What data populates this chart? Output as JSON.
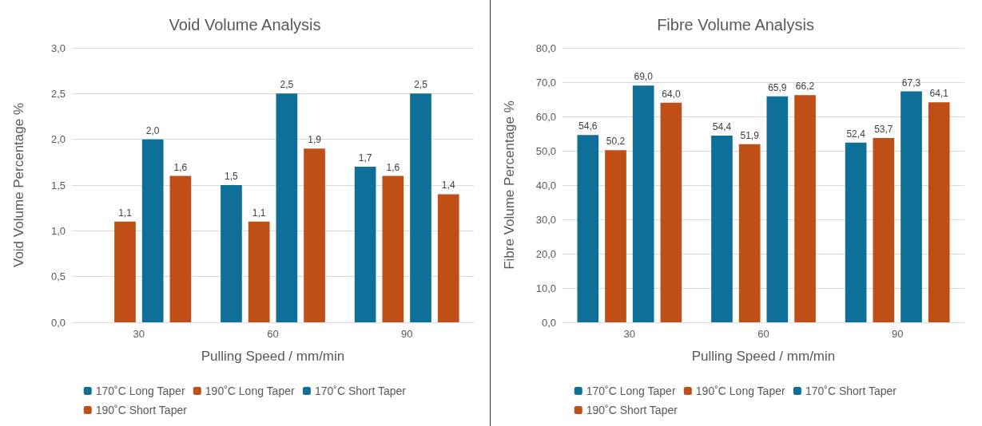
{
  "chart_data": [
    {
      "type": "bar",
      "title": "Void Volume Analysis",
      "xlabel": "Pulling Speed / mm/min",
      "ylabel": "Void Volume Percentage %",
      "categories": [
        "30",
        "60",
        "90"
      ],
      "series": [
        {
          "name": "170˚C Long Taper",
          "color": "#0e6f99",
          "values": [
            null,
            1.5,
            1.7
          ],
          "value_labels": [
            null,
            "1,5",
            "1,7"
          ]
        },
        {
          "name": "190˚C Long Taper",
          "color": "#bf4f17",
          "values": [
            1.1,
            1.1,
            1.6
          ],
          "value_labels": [
            "1,1",
            "1,1",
            "1,6"
          ]
        },
        {
          "name": "170˚C Short Taper",
          "color": "#0e6f99",
          "values": [
            2.0,
            2.5,
            2.5
          ],
          "value_labels": [
            "2,0",
            "2,5",
            "2,5"
          ]
        },
        {
          "name": "190˚C Short Taper",
          "color": "#bf4f17",
          "values": [
            1.6,
            1.9,
            1.4
          ],
          "value_labels": [
            "1,6",
            "1,9",
            "1,4"
          ]
        }
      ],
      "ylim": [
        0,
        3
      ],
      "yticks": [
        {
          "value": 0,
          "label": "0,0"
        },
        {
          "value": 0.5,
          "label": "0,5"
        },
        {
          "value": 1,
          "label": "1,0"
        },
        {
          "value": 1.5,
          "label": "1,5"
        },
        {
          "value": 2,
          "label": "2,0"
        },
        {
          "value": 2.5,
          "label": "2,5"
        },
        {
          "value": 3,
          "label": "3,0"
        }
      ],
      "grid": "y",
      "legend": "bottom"
    },
    {
      "type": "bar",
      "title": "Fibre Volume Analysis",
      "xlabel": "Pulling Speed / mm/min",
      "ylabel": "Fibre Volume Percentage %",
      "categories": [
        "30",
        "60",
        "90"
      ],
      "series": [
        {
          "name": "170˚C Long Taper",
          "color": "#0e6f99",
          "values": [
            54.6,
            54.4,
            52.4
          ],
          "value_labels": [
            "54,6",
            "54,4",
            "52,4"
          ]
        },
        {
          "name": "190˚C Long Taper",
          "color": "#bf4f17",
          "values": [
            50.2,
            51.9,
            53.7
          ],
          "value_labels": [
            "50,2",
            "51,9",
            "53,7"
          ]
        },
        {
          "name": "170˚C Short Taper",
          "color": "#0e6f99",
          "values": [
            69.0,
            65.9,
            67.3
          ],
          "value_labels": [
            "69,0",
            "65,9",
            "67,3"
          ]
        },
        {
          "name": "190˚C Short Taper",
          "color": "#bf4f17",
          "values": [
            64.0,
            66.2,
            64.1
          ],
          "value_labels": [
            "64,0",
            "66,2",
            "64,1"
          ]
        }
      ],
      "ylim": [
        0,
        80
      ],
      "yticks": [
        {
          "value": 0,
          "label": "0,0"
        },
        {
          "value": 10,
          "label": "10,0"
        },
        {
          "value": 20,
          "label": "20,0"
        },
        {
          "value": 30,
          "label": "30,0"
        },
        {
          "value": 40,
          "label": "40,0"
        },
        {
          "value": 50,
          "label": "50,0"
        },
        {
          "value": 60,
          "label": "60,0"
        },
        {
          "value": 70,
          "label": "70,0"
        },
        {
          "value": 80,
          "label": "80,0"
        }
      ],
      "grid": "y",
      "legend": "bottom"
    }
  ]
}
